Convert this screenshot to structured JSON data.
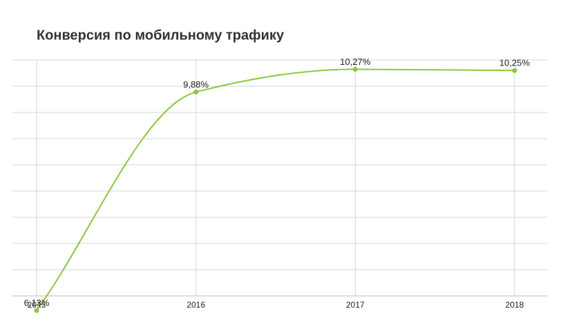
{
  "chart_data": {
    "type": "line",
    "title": "Конверсия по мобильному трафику",
    "categories": [
      "2015",
      "2016",
      "2017",
      "2018"
    ],
    "series": [
      {
        "name": "Конверсия",
        "color": "#8cc63f",
        "values": [
          6.13,
          9.88,
          10.27,
          10.25
        ],
        "value_labels": [
          "6,13%",
          "9,88%",
          "10,27%",
          "10,25%"
        ]
      }
    ],
    "ylim": [
      6.38,
      10.43
    ],
    "yticks": [
      6.38,
      6.83,
      7.28,
      7.73,
      8.18,
      8.63,
      9.08,
      9.53,
      9.98,
      10.43
    ],
    "grid": true
  }
}
